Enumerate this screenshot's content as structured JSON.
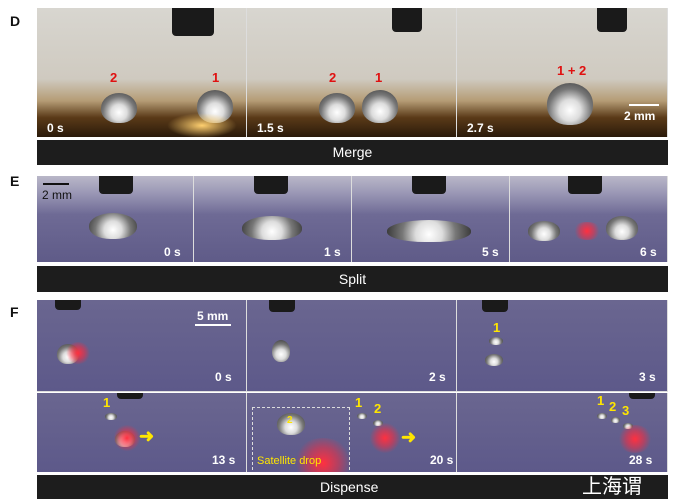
{
  "panels": {
    "D": {
      "label": "D",
      "caption": "Merge",
      "times": [
        "0 s",
        "1.5 s",
        "2.7 s"
      ],
      "drop_labels": [
        "2",
        "1",
        "2",
        "1",
        "1 + 2"
      ],
      "scale": "2 mm"
    },
    "E": {
      "label": "E",
      "caption": "Split",
      "times": [
        "0 s",
        "1 s",
        "5 s",
        "6 s"
      ],
      "scale": "2 mm"
    },
    "F": {
      "label": "F",
      "caption": "Dispense",
      "times": [
        "0 s",
        "2 s",
        "3 s",
        "13 s",
        "20 s",
        "28 s"
      ],
      "scale": "5 mm",
      "drop_labels": [
        "1",
        "1",
        "1",
        "2",
        "1",
        "2",
        "3",
        "2"
      ],
      "inset_label": "Satellite drop"
    }
  },
  "watermark": "上海谓",
  "colors": {
    "d_label": "#e01010",
    "f_label": "#ffe600"
  }
}
